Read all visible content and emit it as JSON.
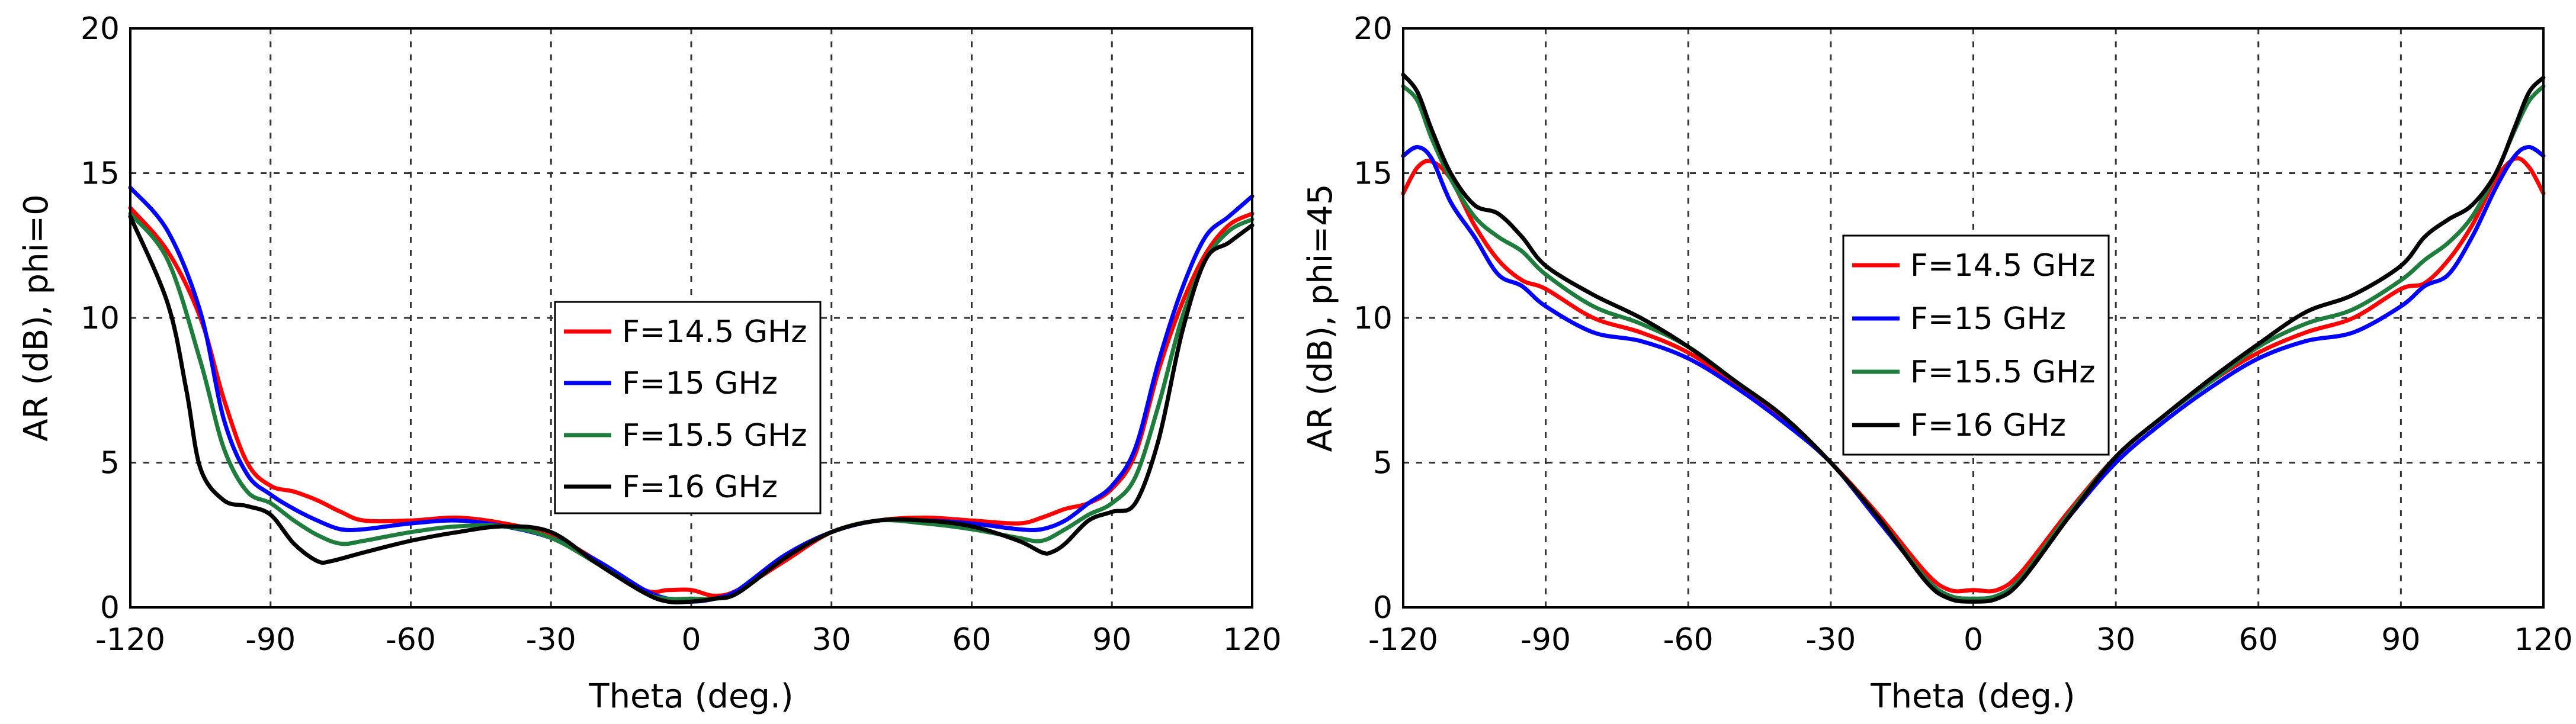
{
  "chart_data": [
    {
      "type": "line",
      "xlabel": "Theta (deg.)",
      "ylabel": "AR (dB), phi=0",
      "xlim": [
        -120,
        120
      ],
      "ylim": [
        0,
        20
      ],
      "xticks": [
        -120,
        -90,
        -60,
        -30,
        0,
        30,
        60,
        90,
        120
      ],
      "yticks": [
        0,
        5,
        10,
        15,
        20
      ],
      "xtick_labels": [
        "-120",
        "-90",
        "-60",
        "-30",
        "0",
        "30",
        "60",
        "90",
        "120"
      ],
      "ytick_labels": [
        "0",
        "5",
        "10",
        "15",
        "20"
      ],
      "grid": true,
      "legend_position": "center",
      "series": [
        {
          "name": "F=14.5 GHz",
          "color": "#ff0000",
          "x": [
            -120,
            -112,
            -105,
            -100,
            -95,
            -90,
            -85,
            -80,
            -75,
            -70,
            -60,
            -50,
            -40,
            -30,
            -20,
            -10,
            -5,
            0,
            5,
            10,
            20,
            30,
            40,
            50,
            60,
            70,
            75,
            80,
            85,
            90,
            95,
            100,
            105,
            110,
            115,
            120
          ],
          "y": [
            13.8,
            12.3,
            10.0,
            7.2,
            5.0,
            4.2,
            4.0,
            3.7,
            3.3,
            3.0,
            3.0,
            3.1,
            2.9,
            2.5,
            1.6,
            0.6,
            0.6,
            0.6,
            0.4,
            0.6,
            1.6,
            2.6,
            3.0,
            3.1,
            3.0,
            2.9,
            3.1,
            3.4,
            3.6,
            4.1,
            5.3,
            8.2,
            10.5,
            12.2,
            13.2,
            13.6
          ]
        },
        {
          "name": "F=15 GHz",
          "color": "#0000ff",
          "x": [
            -120,
            -112,
            -105,
            -100,
            -95,
            -90,
            -85,
            -80,
            -75,
            -70,
            -60,
            -50,
            -40,
            -30,
            -20,
            -10,
            -5,
            0,
            5,
            10,
            20,
            30,
            40,
            50,
            60,
            70,
            75,
            80,
            85,
            90,
            95,
            100,
            105,
            110,
            115,
            120
          ],
          "y": [
            14.5,
            13.0,
            10.2,
            6.5,
            4.6,
            3.9,
            3.4,
            3.0,
            2.7,
            2.7,
            2.9,
            3.0,
            2.8,
            2.4,
            1.6,
            0.6,
            0.3,
            0.2,
            0.3,
            0.6,
            1.8,
            2.6,
            3.0,
            3.0,
            2.9,
            2.7,
            2.7,
            3.0,
            3.6,
            4.2,
            5.5,
            8.5,
            11.0,
            12.8,
            13.5,
            14.2
          ]
        },
        {
          "name": "F=15.5 GHz",
          "color": "#1e7d3c",
          "x": [
            -120,
            -112,
            -105,
            -100,
            -95,
            -90,
            -85,
            -80,
            -75,
            -70,
            -60,
            -50,
            -40,
            -30,
            -20,
            -10,
            -5,
            0,
            5,
            10,
            20,
            30,
            40,
            50,
            60,
            70,
            75,
            80,
            85,
            90,
            95,
            100,
            105,
            110,
            115,
            120
          ],
          "y": [
            13.6,
            12.0,
            8.5,
            5.5,
            4.0,
            3.6,
            3.0,
            2.5,
            2.2,
            2.3,
            2.6,
            2.8,
            2.8,
            2.4,
            1.5,
            0.5,
            0.3,
            0.3,
            0.3,
            0.5,
            1.7,
            2.6,
            3.0,
            2.9,
            2.7,
            2.4,
            2.3,
            2.7,
            3.2,
            3.6,
            4.5,
            7.0,
            10.0,
            12.0,
            13.0,
            13.4
          ]
        },
        {
          "name": "F=16 GHz",
          "color": "#000000",
          "x": [
            -120,
            -112,
            -108,
            -105,
            -100,
            -95,
            -90,
            -85,
            -80,
            -77,
            -70,
            -60,
            -50,
            -40,
            -30,
            -20,
            -10,
            -5,
            0,
            5,
            10,
            20,
            30,
            40,
            50,
            60,
            70,
            75,
            77,
            80,
            85,
            90,
            95,
            100,
            105,
            110,
            115,
            120
          ],
          "y": [
            13.5,
            10.5,
            7.5,
            4.8,
            3.7,
            3.5,
            3.2,
            2.2,
            1.6,
            1.6,
            1.9,
            2.3,
            2.6,
            2.8,
            2.6,
            1.5,
            0.5,
            0.2,
            0.2,
            0.3,
            0.5,
            1.7,
            2.6,
            3.0,
            3.0,
            2.8,
            2.3,
            1.9,
            1.9,
            2.2,
            3.0,
            3.3,
            3.6,
            5.8,
            9.5,
            12.0,
            12.6,
            13.2
          ]
        }
      ]
    },
    {
      "type": "line",
      "xlabel": "Theta (deg.)",
      "ylabel": "AR (dB), phi=45",
      "xlim": [
        -120,
        120
      ],
      "ylim": [
        0,
        20
      ],
      "xticks": [
        -120,
        -90,
        -60,
        -30,
        0,
        30,
        60,
        90,
        120
      ],
      "yticks": [
        0,
        5,
        10,
        15,
        20
      ],
      "xtick_labels": [
        "-120",
        "-90",
        "-60",
        "-30",
        "0",
        "30",
        "60",
        "90",
        "120"
      ],
      "ytick_labels": [
        "0",
        "5",
        "10",
        "15",
        "20"
      ],
      "grid": true,
      "legend_position": "center",
      "series": [
        {
          "name": "F=14.5 GHz",
          "color": "#ff0000",
          "x": [
            -120,
            -117,
            -114,
            -110,
            -105,
            -100,
            -95,
            -90,
            -80,
            -70,
            -60,
            -50,
            -40,
            -30,
            -20,
            -10,
            -5,
            0,
            5,
            10,
            20,
            30,
            40,
            50,
            60,
            70,
            80,
            90,
            95,
            100,
            105,
            110,
            114,
            117,
            120
          ],
          "y": [
            14.3,
            15.2,
            15.4,
            14.8,
            13.2,
            12.0,
            11.3,
            11.0,
            10.0,
            9.5,
            8.8,
            7.7,
            6.5,
            5.0,
            3.2,
            1.2,
            0.6,
            0.6,
            0.6,
            1.2,
            3.3,
            5.2,
            6.6,
            7.8,
            8.8,
            9.5,
            10.0,
            11.0,
            11.2,
            12.0,
            13.2,
            14.8,
            15.5,
            15.2,
            14.3
          ]
        },
        {
          "name": "F=15 GHz",
          "color": "#0000ff",
          "x": [
            -120,
            -117,
            -114,
            -110,
            -105,
            -100,
            -95,
            -90,
            -80,
            -70,
            -60,
            -50,
            -40,
            -30,
            -20,
            -10,
            -5,
            0,
            5,
            10,
            20,
            30,
            40,
            50,
            60,
            70,
            80,
            90,
            95,
            100,
            105,
            110,
            114,
            117,
            120
          ],
          "y": [
            15.6,
            15.9,
            15.5,
            14.0,
            12.8,
            11.5,
            11.1,
            10.4,
            9.5,
            9.2,
            8.6,
            7.6,
            6.4,
            5.0,
            3.0,
            1.0,
            0.4,
            0.3,
            0.4,
            1.0,
            3.1,
            5.0,
            6.4,
            7.6,
            8.6,
            9.2,
            9.5,
            10.4,
            11.1,
            11.5,
            12.8,
            14.5,
            15.6,
            15.9,
            15.6
          ]
        },
        {
          "name": "F=15.5 GHz",
          "color": "#1e7d3c",
          "x": [
            -120,
            -117,
            -114,
            -110,
            -105,
            -100,
            -95,
            -90,
            -80,
            -70,
            -60,
            -50,
            -40,
            -30,
            -20,
            -10,
            -5,
            0,
            5,
            10,
            20,
            30,
            40,
            50,
            60,
            70,
            80,
            90,
            95,
            100,
            105,
            110,
            114,
            117,
            120
          ],
          "y": [
            18.0,
            17.5,
            16.2,
            14.8,
            13.5,
            12.8,
            12.3,
            11.5,
            10.4,
            9.8,
            9.0,
            7.8,
            6.6,
            5.0,
            3.1,
            1.0,
            0.4,
            0.3,
            0.4,
            1.0,
            3.2,
            5.2,
            6.6,
            7.8,
            9.0,
            9.8,
            10.3,
            11.3,
            12.0,
            12.6,
            13.5,
            15.0,
            16.5,
            17.5,
            18.0
          ]
        },
        {
          "name": "F=16 GHz",
          "color": "#000000",
          "x": [
            -120,
            -117,
            -114,
            -110,
            -105,
            -100,
            -95,
            -90,
            -80,
            -70,
            -60,
            -50,
            -40,
            -30,
            -20,
            -10,
            -5,
            0,
            5,
            10,
            20,
            30,
            40,
            50,
            60,
            70,
            80,
            90,
            95,
            100,
            105,
            110,
            114,
            117,
            120
          ],
          "y": [
            18.4,
            17.8,
            16.5,
            15.0,
            13.9,
            13.6,
            12.8,
            11.8,
            10.8,
            10.0,
            9.0,
            7.8,
            6.6,
            5.0,
            3.1,
            0.9,
            0.3,
            0.2,
            0.3,
            0.9,
            3.1,
            5.2,
            6.6,
            7.9,
            9.1,
            10.2,
            10.8,
            11.8,
            12.8,
            13.4,
            13.9,
            15.0,
            16.6,
            17.8,
            18.3
          ]
        }
      ]
    }
  ]
}
